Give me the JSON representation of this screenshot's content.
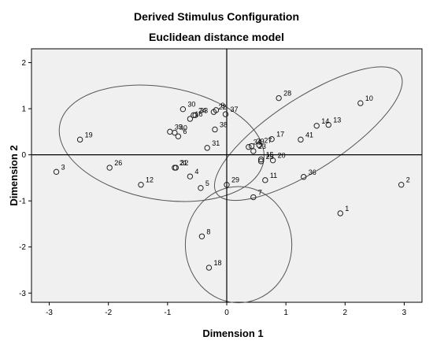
{
  "chart_data": {
    "type": "scatter",
    "title": "Derived Stimulus Configuration",
    "subtitle": "Euclidean distance model",
    "xlabel": "Dimension 1",
    "ylabel": "Dimension 2",
    "xlim": [
      -3.3,
      3.3
    ],
    "ylim": [
      -3.2,
      2.3
    ],
    "xticks": [
      -3,
      -2,
      -1,
      0,
      1,
      2,
      3
    ],
    "yticks": [
      -3,
      -2,
      -1,
      0,
      1,
      2
    ],
    "grid": false,
    "reference_lines": [
      {
        "axis": "x",
        "value": 0
      },
      {
        "axis": "y",
        "value": 0
      }
    ],
    "points": [
      {
        "label": "1",
        "x": 1.92,
        "y": -1.27
      },
      {
        "label": "2",
        "x": 2.95,
        "y": -0.65
      },
      {
        "label": "3",
        "x": -2.88,
        "y": -0.37
      },
      {
        "label": "4",
        "x": -0.62,
        "y": -0.47
      },
      {
        "label": "5",
        "x": -0.44,
        "y": -0.72
      },
      {
        "label": "6",
        "x": -0.82,
        "y": 0.4
      },
      {
        "label": "7",
        "x": 0.45,
        "y": -0.92
      },
      {
        "label": "8",
        "x": -0.42,
        "y": -1.77
      },
      {
        "label": "9",
        "x": -0.18,
        "y": 0.97
      },
      {
        "label": "10",
        "x": 2.26,
        "y": 1.12
      },
      {
        "label": "11",
        "x": 0.65,
        "y": -0.55
      },
      {
        "label": "12",
        "x": -1.45,
        "y": -0.65
      },
      {
        "label": "13",
        "x": 1.72,
        "y": 0.65
      },
      {
        "label": "14",
        "x": 1.52,
        "y": 0.63
      },
      {
        "label": "15",
        "x": 0.58,
        "y": -0.1
      },
      {
        "label": "16",
        "x": -0.62,
        "y": 0.78
      },
      {
        "label": "17",
        "x": 0.76,
        "y": 0.34
      },
      {
        "label": "18",
        "x": -0.3,
        "y": -2.45
      },
      {
        "label": "19",
        "x": -2.48,
        "y": 0.33
      },
      {
        "label": "20",
        "x": 0.78,
        "y": -0.12
      },
      {
        "label": "21",
        "x": -0.88,
        "y": -0.28
      },
      {
        "label": "22",
        "x": -0.22,
        "y": 0.93
      },
      {
        "label": "23",
        "x": 0.45,
        "y": 0.08
      },
      {
        "label": "24",
        "x": -0.56,
        "y": 0.86
      },
      {
        "label": "25",
        "x": 0.58,
        "y": -0.14
      },
      {
        "label": "26",
        "x": -1.98,
        "y": -0.28
      },
      {
        "label": "27",
        "x": 0.55,
        "y": 0.21
      },
      {
        "label": "28",
        "x": 0.88,
        "y": 1.23
      },
      {
        "label": "29",
        "x": 0.0,
        "y": -0.65
      },
      {
        "label": "30",
        "x": -0.74,
        "y": 0.99
      },
      {
        "label": "31",
        "x": -0.33,
        "y": 0.15
      },
      {
        "label": "32",
        "x": -0.86,
        "y": -0.28
      },
      {
        "label": "33",
        "x": -0.53,
        "y": 0.86
      },
      {
        "label": "34",
        "x": 0.37,
        "y": 0.17
      },
      {
        "label": "35",
        "x": -0.96,
        "y": 0.5
      },
      {
        "label": "36",
        "x": 1.3,
        "y": -0.48
      },
      {
        "label": "37",
        "x": -0.02,
        "y": 0.88
      },
      {
        "label": "38",
        "x": -0.2,
        "y": 0.55
      },
      {
        "label": "39",
        "x": 0.42,
        "y": 0.19
      },
      {
        "label": "40",
        "x": -0.88,
        "y": 0.48
      },
      {
        "label": "41",
        "x": 1.25,
        "y": 0.33
      }
    ],
    "ellipses": [
      {
        "cx": -1.1,
        "cy": 0.25,
        "rx": 1.75,
        "ry": 1.22,
        "angle": 10
      },
      {
        "cx": 1.38,
        "cy": 0.46,
        "rx": 1.85,
        "ry": 0.78,
        "angle": -33
      },
      {
        "cx": 0.2,
        "cy": -1.95,
        "rx": 0.9,
        "ry": 1.26,
        "angle": 0
      }
    ]
  }
}
